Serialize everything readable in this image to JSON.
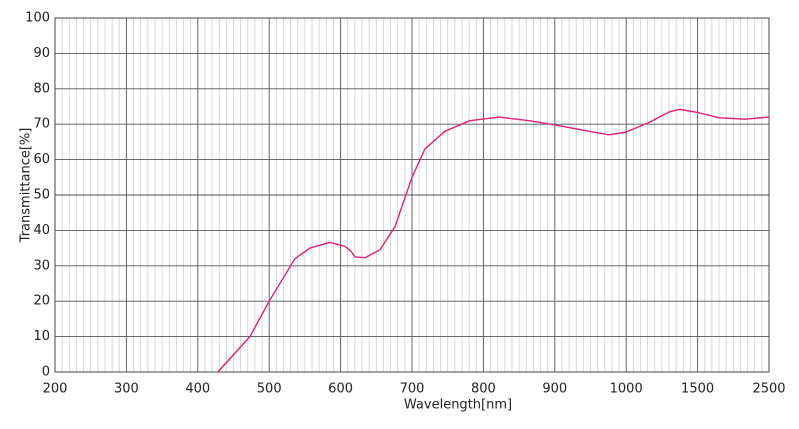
{
  "chart_data": {
    "type": "line",
    "x_label": "Wavelength[nm]",
    "y_label": "Transmittance[%]",
    "x": [
      428,
      473,
      500,
      536,
      557,
      585,
      606,
      615,
      620,
      634,
      655,
      676,
      700,
      718,
      746,
      781,
      822,
      864,
      900,
      948,
      976,
      1000,
      1161,
      1304,
      1374,
      1500,
      1808,
      2164,
      2500
    ],
    "series": [
      {
        "color": "#e0207a",
        "values": [
          0,
          10,
          20,
          32,
          35,
          36.6,
          35.5,
          34,
          32.5,
          32.3,
          34.5,
          41,
          55,
          63,
          68,
          71,
          72,
          71,
          69.8,
          68,
          67,
          67.8,
          70.5,
          73.5,
          74.2,
          73.3,
          71.8,
          71.4,
          72
        ]
      }
    ],
    "xlim": [
      200,
      2500
    ],
    "xticks": [
      200,
      300,
      400,
      500,
      600,
      700,
      800,
      900,
      1000,
      1500,
      2500
    ],
    "ylim": [
      0,
      100
    ],
    "yticks": [
      0,
      10,
      20,
      30,
      40,
      50,
      60,
      70,
      80,
      90,
      100
    ],
    "grid": true,
    "minor_grid": 10
  }
}
